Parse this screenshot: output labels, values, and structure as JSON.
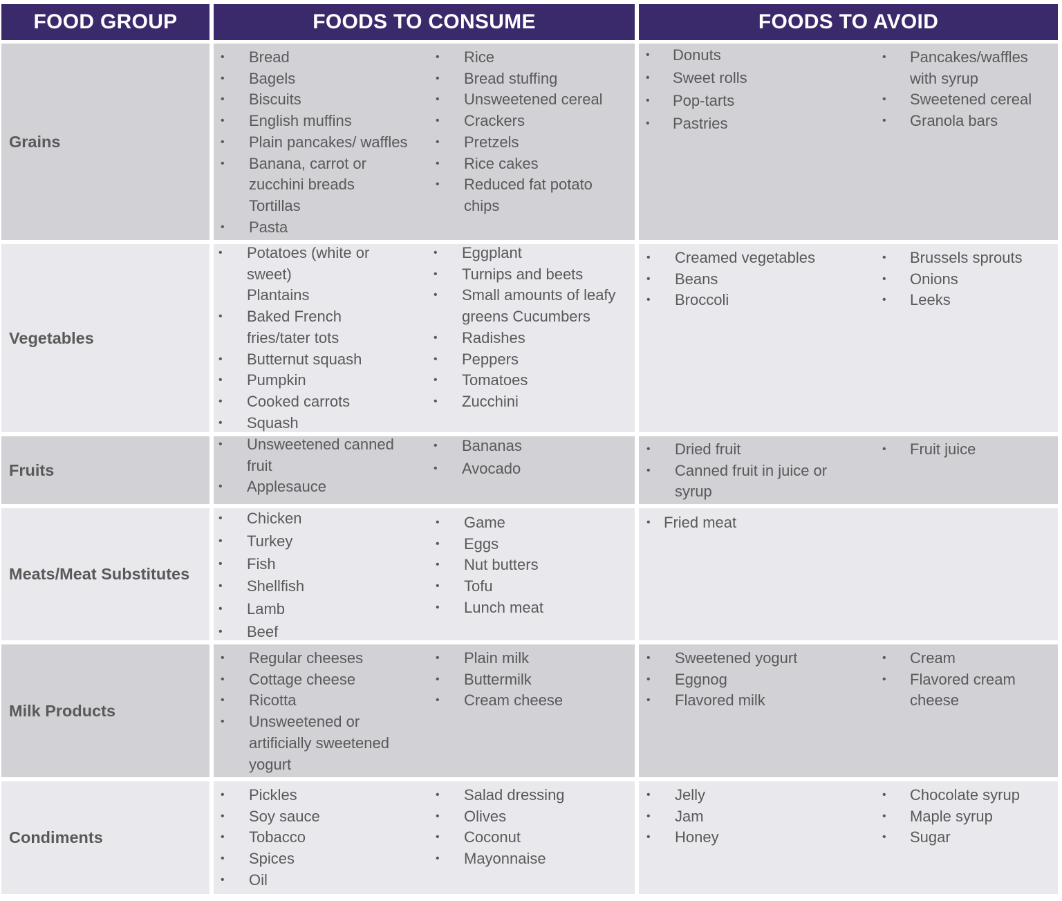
{
  "headers": {
    "food_group": "FOOD GROUP",
    "consume": "FOODS TO CONSUME",
    "avoid": "FOODS TO AVOID"
  },
  "colors": {
    "header_bg": "#3a2a6b",
    "row_dark": "#d1d1d6",
    "row_light": "#e9e9ed",
    "text": "#595959"
  },
  "rows": [
    {
      "group": "Grains",
      "consume_left": [
        "Bread",
        "Bagels",
        "Biscuits",
        "English muffins",
        "Plain pancakes/ waffles",
        "Banana, carrot or",
        "zucchini breads",
        "Tortillas",
        "Pasta"
      ],
      "consume_right": [
        "Rice",
        "Bread stuffing",
        "Unsweetened cereal",
        "Crackers",
        "Pretzels",
        "Rice cakes",
        "Reduced fat potato",
        "chips"
      ],
      "avoid_left": [
        "Donuts",
        "Sweet rolls",
        "Pop-tarts",
        "Pastries"
      ],
      "avoid_right": [
        "Pancakes/waffles",
        "with syrup",
        "Sweetened cereal",
        "Granola bars"
      ]
    },
    {
      "group": "Vegetables",
      "consume_left": [
        "Potatoes (white or",
        "sweet)",
        "Plantains",
        "Baked French",
        "fries/tater tots",
        "Butternut squash",
        "Pumpkin",
        "Cooked carrots",
        "Squash"
      ],
      "consume_right": [
        "Eggplant",
        "Turnips and beets",
        "Small amounts of leafy",
        "greens Cucumbers",
        "Radishes",
        "Peppers",
        "Tomatoes",
        "Zucchini"
      ],
      "avoid_left": [
        "Creamed vegetables",
        "Beans",
        "Broccoli"
      ],
      "avoid_right": [
        "Brussels sprouts",
        "Onions",
        "Leeks"
      ]
    },
    {
      "group": "Fruits",
      "consume_left": [
        "Unsweetened canned",
        "fruit",
        "Applesauce"
      ],
      "consume_right": [
        "Bananas",
        "Avocado"
      ],
      "avoid_left": [
        "Dried fruit",
        "Canned fruit in juice or",
        "syrup"
      ],
      "avoid_right": [
        "Fruit juice"
      ]
    },
    {
      "group": "Meats/Meat Substitutes",
      "consume_left": [
        "Chicken",
        "Turkey",
        "Fish",
        "Shellfish",
        "Lamb",
        "Beef"
      ],
      "consume_right": [
        "Game",
        "Eggs",
        "Nut butters",
        "Tofu",
        "Lunch meat"
      ],
      "avoid_left": [
        "Fried meat"
      ],
      "avoid_right": []
    },
    {
      "group": "Milk Products",
      "consume_left": [
        "Regular cheeses",
        "Cottage cheese",
        "Ricotta",
        "Unsweetened or",
        "artificially sweetened",
        "yogurt"
      ],
      "consume_right": [
        "Plain milk",
        "Buttermilk",
        "Cream cheese"
      ],
      "avoid_left": [
        "Sweetened yogurt",
        "Eggnog",
        "Flavored milk"
      ],
      "avoid_right": [
        "Cream",
        "Flavored cream",
        "cheese"
      ]
    },
    {
      "group": "Condiments",
      "consume_left": [
        "Pickles",
        "Soy sauce",
        "Tobacco",
        "Spices",
        "Oil"
      ],
      "consume_right": [
        "Salad dressing",
        "Olives",
        "Coconut",
        "Mayonnaise"
      ],
      "avoid_left": [
        "Jelly",
        "Jam",
        "Honey"
      ],
      "avoid_right": [
        "Chocolate syrup",
        "Maple syrup",
        "Sugar"
      ]
    }
  ]
}
